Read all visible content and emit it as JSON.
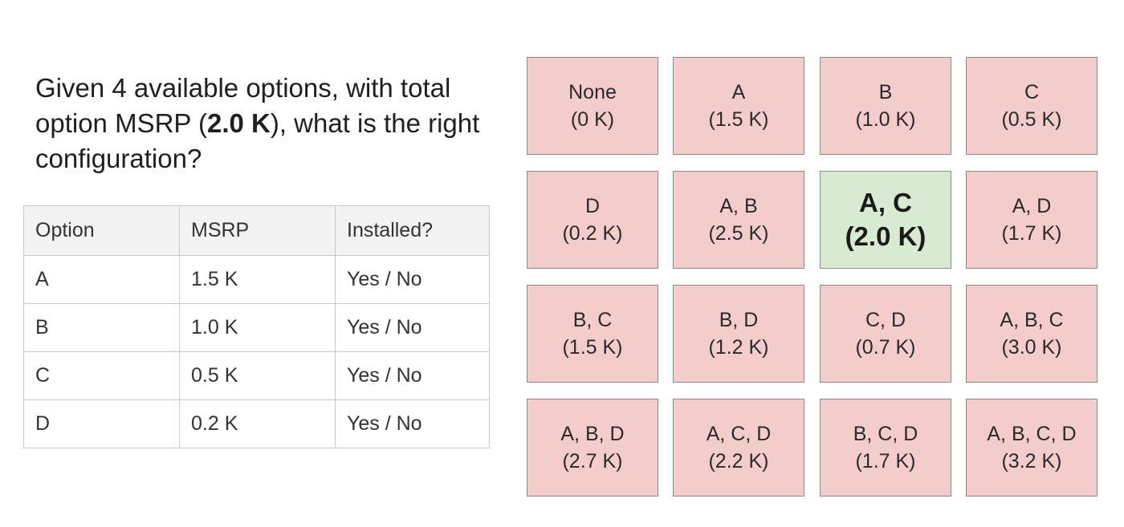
{
  "question": {
    "before": "Given 4 available options, with total option MSRP (",
    "highlight": "2.0 K",
    "after": "), what is the right configuration?"
  },
  "table": {
    "headers": [
      "Option",
      "MSRP",
      "Installed?"
    ],
    "rows": [
      {
        "option": "A",
        "msrp": "1.5 K",
        "installed": "Yes / No"
      },
      {
        "option": "B",
        "msrp": "1.0 K",
        "installed": "Yes / No"
      },
      {
        "option": "C",
        "msrp": "0.5 K",
        "installed": "Yes / No"
      },
      {
        "option": "D",
        "msrp": "0.2 K",
        "installed": "Yes / No"
      }
    ]
  },
  "grid": {
    "colors": {
      "incorrect": "#f4cccc",
      "correct": "#d9ead3"
    },
    "cells": [
      {
        "label": "None",
        "value": "(0 K)",
        "correct": false
      },
      {
        "label": "A",
        "value": "(1.5 K)",
        "correct": false
      },
      {
        "label": "B",
        "value": "(1.0 K)",
        "correct": false
      },
      {
        "label": "C",
        "value": "(0.5 K)",
        "correct": false
      },
      {
        "label": "D",
        "value": "(0.2 K)",
        "correct": false
      },
      {
        "label": "A, B",
        "value": "(2.5 K)",
        "correct": false
      },
      {
        "label": "A, C",
        "value": "(2.0 K)",
        "correct": true
      },
      {
        "label": "A, D",
        "value": "(1.7 K)",
        "correct": false
      },
      {
        "label": "B, C",
        "value": "(1.5 K)",
        "correct": false
      },
      {
        "label": "B, D",
        "value": "(1.2 K)",
        "correct": false
      },
      {
        "label": "C, D",
        "value": "(0.7 K)",
        "correct": false
      },
      {
        "label": "A, B, C",
        "value": "(3.0 K)",
        "correct": false
      },
      {
        "label": "A, B, D",
        "value": "(2.7 K)",
        "correct": false
      },
      {
        "label": "A, C, D",
        "value": "(2.2 K)",
        "correct": false
      },
      {
        "label": "B, C, D",
        "value": "(1.7 K)",
        "correct": false
      },
      {
        "label": "A, B, C, D",
        "value": "(3.2 K)",
        "correct": false
      }
    ]
  }
}
